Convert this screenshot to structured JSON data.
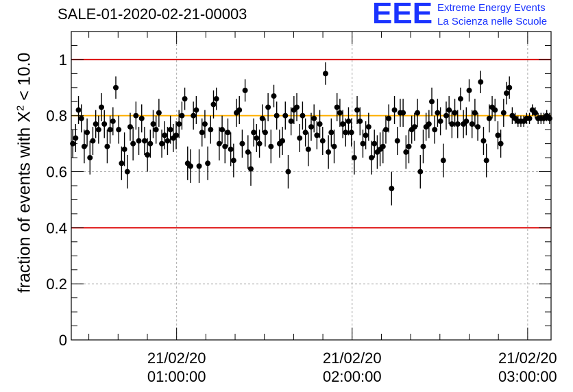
{
  "title": "SALE-01-2020-02-21-00003",
  "logo": {
    "mark": "EEE",
    "line1": "Extreme Energy Events",
    "line2": "La Scienza nelle Scuole"
  },
  "colors": {
    "limit_lines": "#dd0000",
    "reference_line": "#ffb000",
    "points": "#000000",
    "logo": "#1a33ff"
  },
  "chart_data": {
    "type": "scatter",
    "title": "SALE-01-2020-02-21-00003",
    "ylabel_prefix": "fraction of events with X",
    "ylabel_sup": "2",
    "ylabel_suffix": " < 10.0",
    "xlabel": "",
    "x_unit": "time of day on 21/02/20 (HH:MM)",
    "xlim": [
      "00:24",
      "03:08"
    ],
    "ylim": [
      0,
      1.1
    ],
    "yticks": [
      0,
      0.2,
      0.4,
      0.6,
      0.8,
      1
    ],
    "ytick_labels": [
      "0",
      "0.2",
      "0.4",
      "0.6",
      "0.8",
      "1"
    ],
    "xticks": [
      {
        "time": "01:00",
        "label_top": "21/02/20",
        "label_bottom": "01:00:00"
      },
      {
        "time": "02:00",
        "label_top": "21/02/20",
        "label_bottom": "02:00:00"
      },
      {
        "time": "03:00",
        "label_top": "21/02/20",
        "label_bottom": "03:00:00"
      }
    ],
    "grid": true,
    "hlines": [
      {
        "y": 1.0,
        "color": "#dd0000"
      },
      {
        "y": 0.4,
        "color": "#dd0000"
      },
      {
        "y": 0.8,
        "color": "#ffb000"
      }
    ],
    "series": [
      {
        "points": [
          [
            0.7,
            0.05
          ],
          [
            0.72,
            0.05
          ],
          [
            0.82,
            0.05
          ],
          [
            0.79,
            0.05
          ],
          [
            0.69,
            0.06
          ],
          [
            0.74,
            0.05
          ],
          [
            0.65,
            0.06
          ],
          [
            0.71,
            0.05
          ],
          [
            0.77,
            0.05
          ],
          [
            0.75,
            0.05
          ],
          [
            0.83,
            0.05
          ],
          [
            0.77,
            0.05
          ],
          [
            0.69,
            0.06
          ],
          [
            0.75,
            0.05
          ],
          [
            0.78,
            0.05
          ],
          [
            0.9,
            0.04
          ],
          [
            0.75,
            0.05
          ],
          [
            0.63,
            0.06
          ],
          [
            0.68,
            0.06
          ],
          [
            0.6,
            0.06
          ],
          [
            0.76,
            0.05
          ],
          [
            0.7,
            0.06
          ],
          [
            0.8,
            0.05
          ],
          [
            0.71,
            0.05
          ],
          [
            0.79,
            0.05
          ],
          [
            0.71,
            0.05
          ],
          [
            0.66,
            0.06
          ],
          [
            0.7,
            0.05
          ],
          [
            0.77,
            0.05
          ],
          [
            0.75,
            0.05
          ],
          [
            0.81,
            0.05
          ],
          [
            0.7,
            0.05
          ],
          [
            0.73,
            0.05
          ],
          [
            0.71,
            0.05
          ],
          [
            0.75,
            0.05
          ],
          [
            0.72,
            0.05
          ],
          [
            0.73,
            0.05
          ],
          [
            0.77,
            0.05
          ],
          [
            0.8,
            0.05
          ],
          [
            0.86,
            0.04
          ],
          [
            0.63,
            0.06
          ],
          [
            0.62,
            0.06
          ],
          [
            0.8,
            0.05
          ],
          [
            0.82,
            0.05
          ],
          [
            0.62,
            0.06
          ],
          [
            0.74,
            0.05
          ],
          [
            0.77,
            0.05
          ],
          [
            0.63,
            0.06
          ],
          [
            0.75,
            0.05
          ],
          [
            0.84,
            0.05
          ],
          [
            0.86,
            0.04
          ],
          [
            0.7,
            0.06
          ],
          [
            0.75,
            0.05
          ],
          [
            0.69,
            0.06
          ],
          [
            0.74,
            0.05
          ],
          [
            0.68,
            0.06
          ],
          [
            0.64,
            0.06
          ],
          [
            0.81,
            0.05
          ],
          [
            0.82,
            0.05
          ],
          [
            0.7,
            0.05
          ],
          [
            0.89,
            0.04
          ],
          [
            0.67,
            0.06
          ],
          [
            0.61,
            0.06
          ],
          [
            0.74,
            0.05
          ],
          [
            0.72,
            0.05
          ],
          [
            0.7,
            0.05
          ],
          [
            0.79,
            0.05
          ],
          [
            0.74,
            0.05
          ],
          [
            0.83,
            0.05
          ],
          [
            0.69,
            0.06
          ],
          [
            0.87,
            0.04
          ],
          [
            0.8,
            0.05
          ],
          [
            0.7,
            0.05
          ],
          [
            0.71,
            0.05
          ],
          [
            0.8,
            0.05
          ],
          [
            0.6,
            0.06
          ],
          [
            0.78,
            0.05
          ],
          [
            0.82,
            0.05
          ],
          [
            0.83,
            0.05
          ],
          [
            0.72,
            0.05
          ],
          [
            0.8,
            0.05
          ],
          [
            0.74,
            0.05
          ],
          [
            0.68,
            0.06
          ],
          [
            0.76,
            0.05
          ],
          [
            0.79,
            0.05
          ],
          [
            0.73,
            0.05
          ],
          [
            0.77,
            0.05
          ],
          [
            0.71,
            0.05
          ],
          [
            0.95,
            0.04
          ],
          [
            0.67,
            0.06
          ],
          [
            0.74,
            0.05
          ],
          [
            0.69,
            0.06
          ],
          [
            0.83,
            0.05
          ],
          [
            0.81,
            0.05
          ],
          [
            0.77,
            0.05
          ],
          [
            0.74,
            0.05
          ],
          [
            0.78,
            0.05
          ],
          [
            0.74,
            0.05
          ],
          [
            0.65,
            0.06
          ],
          [
            0.82,
            0.05
          ],
          [
            0.78,
            0.05
          ],
          [
            0.7,
            0.05
          ],
          [
            0.73,
            0.05
          ],
          [
            0.76,
            0.05
          ],
          [
            0.65,
            0.06
          ],
          [
            0.7,
            0.05
          ],
          [
            0.67,
            0.06
          ],
          [
            0.68,
            0.06
          ],
          [
            0.69,
            0.06
          ],
          [
            0.75,
            0.05
          ],
          [
            0.79,
            0.05
          ],
          [
            0.54,
            0.06
          ],
          [
            0.82,
            0.05
          ],
          [
            0.71,
            0.05
          ],
          [
            0.81,
            0.05
          ],
          [
            0.81,
            0.05
          ],
          [
            0.67,
            0.06
          ],
          [
            0.69,
            0.06
          ],
          [
            0.75,
            0.05
          ],
          [
            0.76,
            0.05
          ],
          [
            0.81,
            0.05
          ],
          [
            0.6,
            0.06
          ],
          [
            0.69,
            0.06
          ],
          [
            0.76,
            0.05
          ],
          [
            0.77,
            0.05
          ],
          [
            0.85,
            0.05
          ],
          [
            0.75,
            0.05
          ],
          [
            0.81,
            0.05
          ],
          [
            0.78,
            0.05
          ],
          [
            0.64,
            0.06
          ],
          [
            0.8,
            0.05
          ],
          [
            0.82,
            0.05
          ],
          [
            0.77,
            0.05
          ],
          [
            0.81,
            0.05
          ],
          [
            0.77,
            0.05
          ],
          [
            0.86,
            0.04
          ],
          [
            0.77,
            0.05
          ],
          [
            0.78,
            0.05
          ],
          [
            0.89,
            0.04
          ],
          [
            0.77,
            0.05
          ],
          [
            0.81,
            0.05
          ],
          [
            0.76,
            0.05
          ],
          [
            0.92,
            0.04
          ],
          [
            0.71,
            0.05
          ],
          [
            0.64,
            0.06
          ],
          [
            0.79,
            0.05
          ],
          [
            0.83,
            0.04
          ],
          [
            0.82,
            0.04
          ],
          [
            0.73,
            0.05
          ],
          [
            0.7,
            0.05
          ],
          [
            0.81,
            0.05
          ],
          [
            0.88,
            0.04
          ],
          [
            0.9,
            0.04
          ],
          [
            0.8,
            0.03
          ],
          [
            0.79,
            0.02
          ],
          [
            0.78,
            0.02
          ],
          [
            0.78,
            0.02
          ],
          [
            0.78,
            0.02
          ],
          [
            0.79,
            0.02
          ],
          [
            0.79,
            0.02
          ],
          [
            0.82,
            0.02
          ],
          [
            0.81,
            0.02
          ],
          [
            0.79,
            0.02
          ],
          [
            0.79,
            0.02
          ],
          [
            0.79,
            0.02
          ],
          [
            0.8,
            0.02
          ],
          [
            0.79,
            0.02
          ]
        ]
      }
    ]
  }
}
